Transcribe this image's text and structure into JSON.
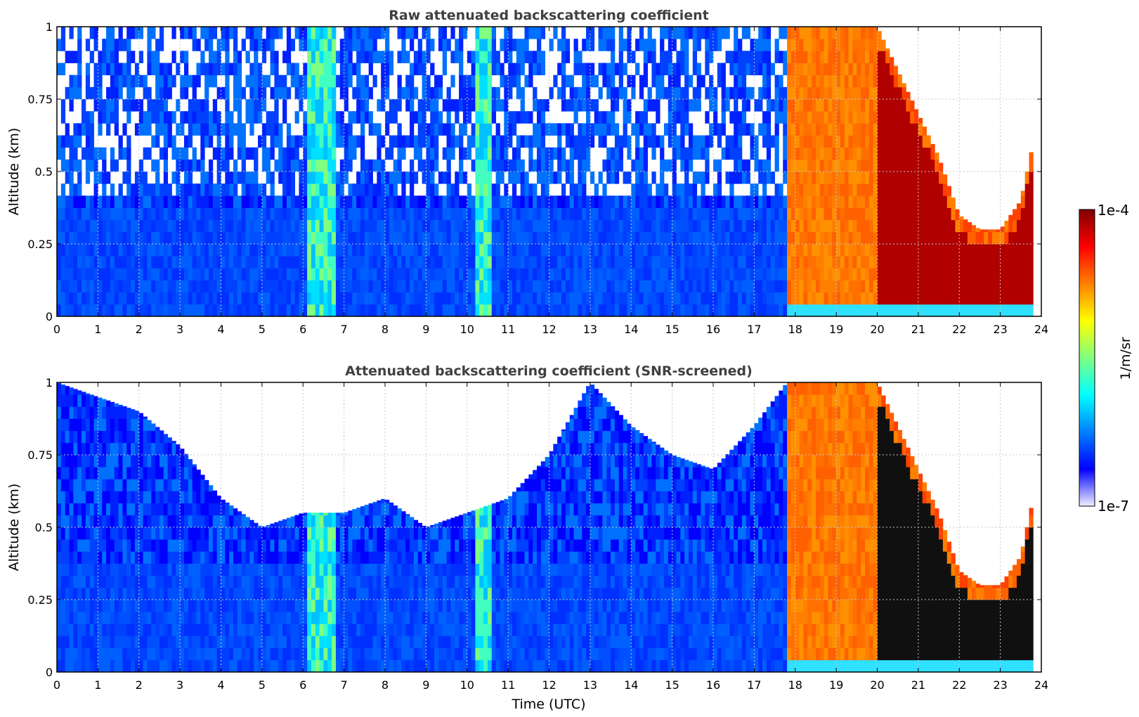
{
  "chart_data": [
    {
      "type": "heatmap",
      "title": "Raw attenuated backscattering coefficient",
      "xlabel": "",
      "ylabel": "Altitude (km)",
      "xlim": [
        0,
        24
      ],
      "ylim": [
        0,
        1
      ],
      "x_ticks": [
        "0",
        "1",
        "2",
        "3",
        "4",
        "5",
        "6",
        "7",
        "8",
        "9",
        "10",
        "11",
        "12",
        "13",
        "14",
        "15",
        "16",
        "17",
        "18",
        "19",
        "20",
        "21",
        "22",
        "23",
        "24"
      ],
      "y_ticks": [
        "0",
        "0.25",
        "0.5",
        "0.75",
        "1"
      ],
      "grid": true,
      "regions": [
        {
          "t0": 0.0,
          "t1": 6.1,
          "level": "low"
        },
        {
          "t0": 6.1,
          "t1": 6.8,
          "level": "medium"
        },
        {
          "t0": 6.8,
          "t1": 10.2,
          "level": "low"
        },
        {
          "t0": 10.2,
          "t1": 10.6,
          "level": "medium"
        },
        {
          "t0": 10.6,
          "t1": 17.8,
          "level": "low"
        },
        {
          "t0": 17.8,
          "t1": 20.0,
          "level": "high"
        },
        {
          "t0": 20.0,
          "t1": 23.8,
          "level": "very-high"
        }
      ],
      "cloud_top_km": [
        {
          "t": 20.0,
          "alt": 1.0
        },
        {
          "t": 20.5,
          "alt": 0.85
        },
        {
          "t": 21.0,
          "alt": 0.7
        },
        {
          "t": 21.5,
          "alt": 0.55
        },
        {
          "t": 22.0,
          "alt": 0.35
        },
        {
          "t": 22.5,
          "alt": 0.3
        },
        {
          "t": 23.0,
          "alt": 0.3
        },
        {
          "t": 23.5,
          "alt": 0.4
        },
        {
          "t": 23.8,
          "alt": 0.6
        }
      ]
    },
    {
      "type": "heatmap",
      "title": "Attenuated backscattering coefficient (SNR-screened)",
      "xlabel": "Time (UTC)",
      "ylabel": "Altitude (km)",
      "xlim": [
        0,
        24
      ],
      "ylim": [
        0,
        1
      ],
      "x_ticks": [
        "0",
        "1",
        "2",
        "3",
        "4",
        "5",
        "6",
        "7",
        "8",
        "9",
        "10",
        "11",
        "12",
        "13",
        "14",
        "15",
        "16",
        "17",
        "18",
        "19",
        "20",
        "21",
        "22",
        "23",
        "24"
      ],
      "y_ticks": [
        "0",
        "0.25",
        "0.5",
        "0.75",
        "1"
      ],
      "grid": true,
      "screened_top_km": [
        {
          "t": 0.0,
          "alt": 1.0
        },
        {
          "t": 1.0,
          "alt": 0.95
        },
        {
          "t": 2.0,
          "alt": 0.9
        },
        {
          "t": 3.0,
          "alt": 0.78
        },
        {
          "t": 4.0,
          "alt": 0.6
        },
        {
          "t": 5.0,
          "alt": 0.5
        },
        {
          "t": 6.0,
          "alt": 0.55
        },
        {
          "t": 7.0,
          "alt": 0.55
        },
        {
          "t": 8.0,
          "alt": 0.6
        },
        {
          "t": 9.0,
          "alt": 0.5
        },
        {
          "t": 10.0,
          "alt": 0.55
        },
        {
          "t": 11.0,
          "alt": 0.6
        },
        {
          "t": 12.0,
          "alt": 0.75
        },
        {
          "t": 13.0,
          "alt": 1.0
        },
        {
          "t": 14.0,
          "alt": 0.85
        },
        {
          "t": 15.0,
          "alt": 0.75
        },
        {
          "t": 16.0,
          "alt": 0.7
        },
        {
          "t": 17.0,
          "alt": 0.85
        },
        {
          "t": 17.8,
          "alt": 1.0
        }
      ]
    }
  ],
  "colorbar": {
    "label": "1/m/sr",
    "min_label": "1e-7",
    "max_label": "1e-4",
    "colormap": "jet",
    "colors": [
      "#f0f0ff",
      "#0000ff",
      "#0080ff",
      "#00ffff",
      "#80ff80",
      "#ffff00",
      "#ff8000",
      "#ff0000",
      "#800000"
    ]
  }
}
